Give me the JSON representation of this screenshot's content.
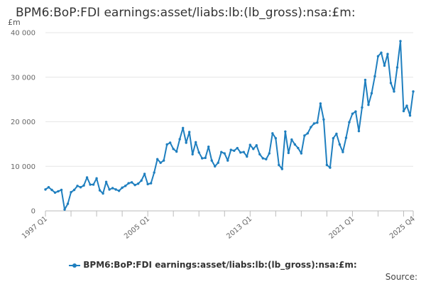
{
  "chart_data": {
    "type": "line",
    "title": "BPM6:BoP:FDI earnings:asset/liabs:lb:(lb_gross):nsa:£m:",
    "ylabel": "£m",
    "ylim": [
      0,
      40000
    ],
    "yticks": [
      0,
      10000,
      20000,
      30000,
      40000
    ],
    "ytick_labels": [
      "0",
      "10 000",
      "20 000",
      "30 000",
      "40 000"
    ],
    "xtick_labels": [
      {
        "label": "1997 Q1",
        "index": 0
      },
      {
        "label": "2005 Q1",
        "index": 32
      },
      {
        "label": "2013 Q1",
        "index": 64
      },
      {
        "label": "2021 Q1",
        "index": 96
      },
      {
        "label": "2025 Q4",
        "index": 115
      }
    ],
    "legend": "BPM6:BoP:FDI earnings:asset/liabs:lb:(lb_gross):nsa:£m:",
    "color": "#1f7fbf",
    "series": [
      {
        "name": "BPM6:BoP:FDI earnings:asset/liabs:lb:(lb_gross):nsa:£m:",
        "start": "1997 Q1",
        "values": [
          4800,
          5300,
          4700,
          4100,
          4400,
          4700,
          300,
          1600,
          4200,
          4700,
          5600,
          5300,
          5700,
          7500,
          5900,
          5900,
          7300,
          4600,
          3900,
          6500,
          4800,
          5100,
          4800,
          4500,
          5200,
          5600,
          6200,
          6400,
          5800,
          6100,
          6800,
          8300,
          6000,
          6200,
          8600,
          11600,
          10800,
          11300,
          14900,
          15300,
          13900,
          13300,
          16100,
          18600,
          15300,
          17700,
          12700,
          15400,
          13100,
          11800,
          11900,
          14400,
          11300,
          10000,
          10800,
          13200,
          12900,
          11300,
          13700,
          13500,
          14100,
          13100,
          13200,
          12200,
          14800,
          13900,
          14700,
          12700,
          11800,
          11600,
          12900,
          17400,
          16300,
          10300,
          9400,
          17800,
          13000,
          16000,
          14900,
          14100,
          12900,
          16900,
          17400,
          18800,
          19600,
          19800,
          24100,
          20500,
          10300,
          9700,
          16300,
          17300,
          14900,
          13200,
          16400,
          19900,
          21800,
          22300,
          17900,
          23200,
          29400,
          23800,
          26400,
          30200,
          34700,
          35500,
          32600,
          35200,
          28700,
          26800,
          32200,
          38100,
          22400,
          23600,
          21400,
          26800
        ]
      }
    ]
  },
  "legend_label": "BPM6:BoP:FDI earnings:asset/liabs:lb:(lb_gross):nsa:£m:",
  "source_label": "Source:"
}
